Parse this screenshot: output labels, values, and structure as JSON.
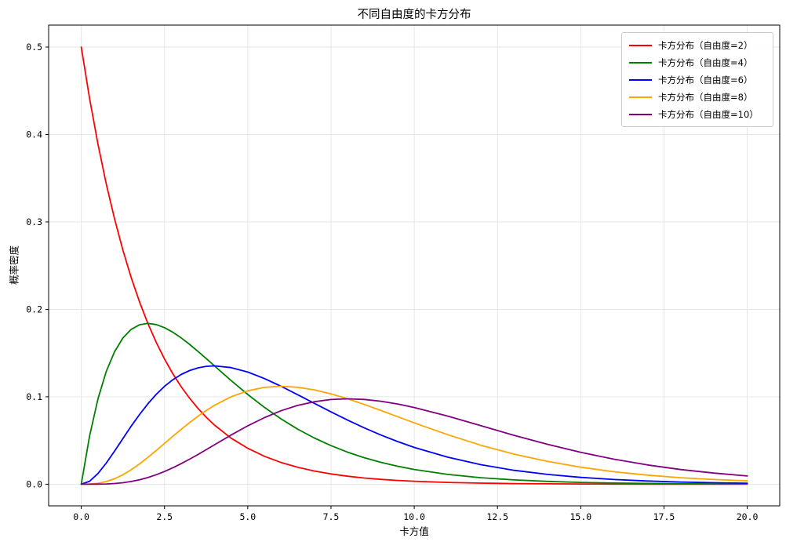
{
  "figure": {
    "background": "#ffffff",
    "axes_border_color": "#000000"
  },
  "chart_data": {
    "type": "line",
    "title": "不同自由度的卡方分布",
    "xlabel": "卡方值",
    "ylabel": "概率密度",
    "xlim": [
      -1,
      21
    ],
    "ylim": [
      -0.025,
      0.525
    ],
    "grid": true,
    "grid_color": "#e6e6e6",
    "legend_position": "upper right",
    "x_ticks": [
      0,
      2.5,
      5,
      7.5,
      10,
      12.5,
      15,
      17.5,
      20
    ],
    "x_tick_labels": [
      "0.0",
      "2.5",
      "5.0",
      "7.5",
      "10.0",
      "12.5",
      "15.0",
      "17.5",
      "20.0"
    ],
    "y_ticks": [
      0,
      0.1,
      0.2,
      0.3,
      0.4,
      0.5
    ],
    "y_tick_labels": [
      "0.0",
      "0.1",
      "0.2",
      "0.3",
      "0.4",
      "0.5"
    ],
    "x": [
      0,
      0.25,
      0.5,
      0.75,
      1,
      1.25,
      1.5,
      1.75,
      2,
      2.25,
      2.5,
      2.75,
      3,
      3.25,
      3.5,
      3.75,
      4,
      4.5,
      5,
      5.5,
      6,
      6.5,
      7,
      7.5,
      8,
      8.5,
      9,
      9.5,
      10,
      11,
      12,
      13,
      14,
      15,
      16,
      17,
      18,
      19,
      20
    ],
    "series": [
      {
        "name": "卡方分布（自由度=2）",
        "color": "#ff0000",
        "df": 2,
        "values": [
          0.5,
          0.44125,
          0.3894,
          0.34364,
          0.30327,
          0.26763,
          0.23618,
          0.20843,
          0.18394,
          0.16233,
          0.14325,
          0.12642,
          0.11157,
          0.09846,
          0.08689,
          0.07668,
          0.06767,
          0.0527,
          0.04104,
          0.03196,
          0.02489,
          0.01939,
          0.0151,
          0.01176,
          0.00916,
          0.00713,
          0.00555,
          0.00433,
          0.00337,
          0.00204,
          0.00124,
          0.00075,
          0.00046,
          0.00028,
          0.00017,
          0.0001,
          6e-05,
          4e-05,
          2e-05
        ]
      },
      {
        "name": "卡方分布（自由度=4）",
        "color": "#008000",
        "df": 4,
        "values": [
          0,
          0.05516,
          0.09735,
          0.12887,
          0.15163,
          0.16727,
          0.17714,
          0.18238,
          0.18394,
          0.18262,
          0.17907,
          0.17383,
          0.16735,
          0.15999,
          0.15205,
          0.14377,
          0.13534,
          0.11857,
          0.10261,
          0.0879,
          0.07468,
          0.06301,
          0.05284,
          0.0441,
          0.03663,
          0.03031,
          0.025,
          0.02055,
          0.01684,
          0.01124,
          0.00744,
          0.00489,
          0.00319,
          0.00207,
          0.00134,
          0.00086,
          0.00056,
          0.00036,
          0.00023
        ]
      },
      {
        "name": "卡方分布（自由度=6）",
        "color": "#0000ff",
        "df": 6,
        "values": [
          0,
          0.00345,
          0.01217,
          0.02416,
          0.03791,
          0.05227,
          0.06643,
          0.07979,
          0.09197,
          0.10272,
          0.11192,
          0.11951,
          0.12551,
          0.13,
          0.13305,
          0.1348,
          0.13534,
          0.13339,
          0.12826,
          0.12087,
          0.11202,
          0.10238,
          0.09248,
          0.08268,
          0.07326,
          0.06441,
          0.05624,
          0.0488,
          0.04211,
          0.03091,
          0.02231,
          0.01588,
          0.01117,
          0.00778,
          0.00537,
          0.00367,
          0.0025,
          0.00169,
          0.00114
        ]
      },
      {
        "name": "卡方分布（自由度=8）",
        "color": "#ffa500",
        "df": 8,
        "values": [
          0,
          0.00014,
          0.00101,
          0.00302,
          0.00632,
          0.01089,
          0.01661,
          0.02327,
          0.03066,
          0.03852,
          0.04663,
          0.05477,
          0.06276,
          0.07041,
          0.07761,
          0.08424,
          0.09022,
          0.10004,
          0.10688,
          0.11079,
          0.11202,
          0.11091,
          0.10789,
          0.10335,
          0.09769,
          0.09124,
          0.08436,
          0.07727,
          0.07019,
          0.05666,
          0.04462,
          0.0344,
          0.02607,
          0.01944,
          0.01429,
          0.01039,
          0.00747,
          0.00535,
          0.00378
        ]
      },
      {
        "name": "卡方分布（自由度=10）",
        "color": "#800080",
        "df": 10,
        "values": [
          0,
          0,
          6e-05,
          0.00028,
          0.00079,
          0.0017,
          0.00311,
          0.00509,
          0.00766,
          0.01083,
          0.01457,
          0.01883,
          0.02353,
          0.0286,
          0.03395,
          0.03949,
          0.04511,
          0.05627,
          0.0668,
          0.07617,
          0.08401,
          0.09012,
          0.0944,
          0.09689,
          0.09769,
          0.09695,
          0.0949,
          0.09176,
          0.08773,
          0.07791,
          0.06693,
          0.05589,
          0.04562,
          0.03645,
          0.02859,
          0.02208,
          0.01681,
          0.01271,
          0.00946
        ]
      }
    ]
  }
}
